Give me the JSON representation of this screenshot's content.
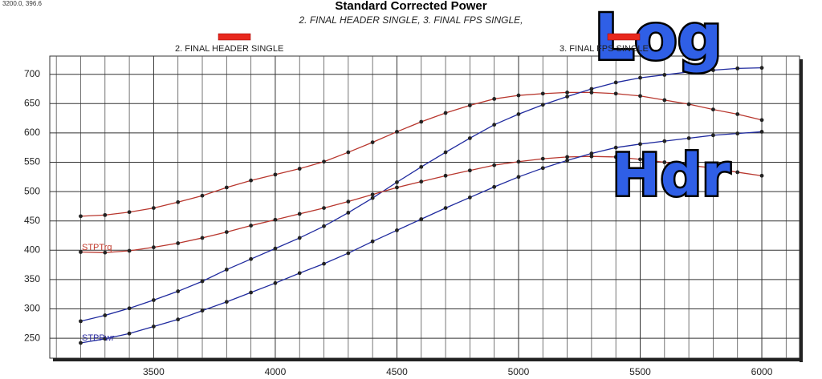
{
  "chart_data": {
    "type": "line",
    "corner_text": "3200.0, 396.6",
    "title": "Standard Corrected Power",
    "subtitle": "2. FINAL HEADER SINGLE, 3. FINAL FPS SINGLE,",
    "legend": [
      {
        "name": "2. FINAL HEADER SINGLE",
        "color": "#e8281e"
      },
      {
        "name": "3. FINAL FPS SINGLE",
        "color": "#e8281e"
      }
    ],
    "curve_labels": [
      {
        "text": "STPTrq",
        "color": "#c0392b"
      },
      {
        "text": "STPPwr",
        "color": "#2a2aa0"
      }
    ],
    "overlay": [
      "Log",
      "Hdr"
    ],
    "x": [
      3200,
      3300,
      3400,
      3500,
      3600,
      3700,
      3800,
      3900,
      4000,
      4100,
      4200,
      4300,
      4400,
      4500,
      4600,
      4700,
      4800,
      4900,
      5000,
      5100,
      5200,
      5300,
      5400,
      5500,
      5600,
      5700,
      5800,
      5900,
      6000
    ],
    "xlim": [
      3073,
      6155
    ],
    "xticks": [
      3500,
      4000,
      4500,
      5000,
      5500,
      6000
    ],
    "xminor": [
      3100,
      3200,
      3300,
      3400,
      3600,
      3700,
      3800,
      3900,
      4100,
      4200,
      4300,
      4400,
      4600,
      4700,
      4800,
      4900,
      5100,
      5200,
      5300,
      5400,
      5600,
      5700,
      5800,
      5900,
      6100
    ],
    "ylim": [
      216,
      731
    ],
    "yticks": [
      250,
      300,
      350,
      400,
      450,
      500,
      550,
      600,
      650,
      700
    ],
    "grid": true,
    "series": [
      {
        "color": "#b8372e",
        "values": [
          458,
          460,
          465,
          472,
          482,
          493,
          507,
          519,
          529,
          539,
          551,
          567,
          584,
          602,
          619,
          634,
          647,
          658,
          664,
          667,
          669,
          669,
          667,
          663,
          656,
          649,
          640,
          632,
          622
        ]
      },
      {
        "color": "#1f2a9e",
        "values": [
          279,
          289,
          301,
          315,
          330,
          347,
          367,
          385,
          403,
          421,
          441,
          464,
          489,
          516,
          542,
          567,
          591,
          614,
          632,
          648,
          662,
          675,
          686,
          694,
          699,
          704,
          707,
          710,
          711
        ]
      },
      {
        "color": "#b8372e",
        "values": [
          397,
          396,
          399,
          405,
          412,
          421,
          431,
          442,
          452,
          462,
          472,
          483,
          495,
          507,
          517,
          527,
          536,
          545,
          551,
          556,
          559,
          560,
          559,
          555,
          550,
          545,
          540,
          533,
          527
        ]
      },
      {
        "color": "#1f2a9e",
        "values": [
          242,
          249,
          258,
          270,
          282,
          297,
          312,
          328,
          344,
          361,
          377,
          395,
          415,
          434,
          453,
          472,
          490,
          508,
          525,
          540,
          553,
          565,
          575,
          581,
          586,
          591,
          596,
          599,
          602
        ]
      }
    ]
  }
}
